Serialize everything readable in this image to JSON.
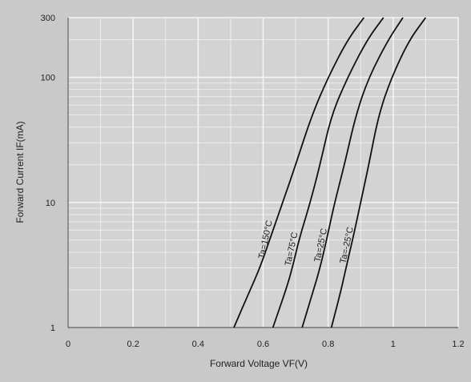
{
  "chart_data": {
    "type": "line",
    "title": "",
    "xlabel": "Forward Voltage   VF(V)",
    "ylabel": "Forward Current   IF(mA)",
    "xlim": [
      0,
      1.2
    ],
    "ylim": [
      1,
      300
    ],
    "y_scale": "log",
    "grid": true,
    "x_ticks": [
      {
        "value": 0,
        "label": "0"
      },
      {
        "value": 0.2,
        "label": "0.2"
      },
      {
        "value": 0.4,
        "label": "0.4"
      },
      {
        "value": 0.6,
        "label": "0.6"
      },
      {
        "value": 0.8,
        "label": "0.8"
      },
      {
        "value": 1.0,
        "label": "1"
      },
      {
        "value": 1.2,
        "label": "1.2"
      }
    ],
    "y_ticks": [
      {
        "value": 1,
        "label": "1"
      },
      {
        "value": 10,
        "label": "10"
      },
      {
        "value": 100,
        "label": "100"
      },
      {
        "value": 300,
        "label": "300"
      }
    ],
    "series": [
      {
        "name": "Ta=150°C",
        "color": "#111111",
        "points": [
          [
            0.51,
            1
          ],
          [
            0.56,
            2
          ],
          [
            0.59,
            3
          ],
          [
            0.62,
            5
          ],
          [
            0.66,
            10
          ],
          [
            0.7,
            20
          ],
          [
            0.75,
            50
          ],
          [
            0.8,
            100
          ],
          [
            0.86,
            200
          ],
          [
            0.91,
            300
          ]
        ]
      },
      {
        "name": "Ta=75°C",
        "color": "#111111",
        "points": [
          [
            0.63,
            1
          ],
          [
            0.67,
            2
          ],
          [
            0.69,
            3
          ],
          [
            0.71,
            5
          ],
          [
            0.745,
            10
          ],
          [
            0.775,
            20
          ],
          [
            0.81,
            50
          ],
          [
            0.86,
            100
          ],
          [
            0.92,
            200
          ],
          [
            0.97,
            300
          ]
        ]
      },
      {
        "name": "Ta=25°C",
        "color": "#111111",
        "points": [
          [
            0.72,
            1
          ],
          [
            0.755,
            2
          ],
          [
            0.775,
            3
          ],
          [
            0.795,
            5
          ],
          [
            0.82,
            10
          ],
          [
            0.85,
            20
          ],
          [
            0.885,
            50
          ],
          [
            0.925,
            100
          ],
          [
            0.985,
            200
          ],
          [
            1.03,
            300
          ]
        ]
      },
      {
        "name": "Ta=-25°C",
        "color": "#111111",
        "points": [
          [
            0.81,
            1
          ],
          [
            0.84,
            2
          ],
          [
            0.855,
            3
          ],
          [
            0.875,
            5
          ],
          [
            0.9,
            10
          ],
          [
            0.925,
            20
          ],
          [
            0.955,
            50
          ],
          [
            0.995,
            100
          ],
          [
            1.05,
            200
          ],
          [
            1.1,
            300
          ]
        ]
      }
    ],
    "annotations": [
      "Ta=150°C",
      "Ta=75°C",
      "Ta=25°C",
      "Ta=-25°C"
    ]
  }
}
